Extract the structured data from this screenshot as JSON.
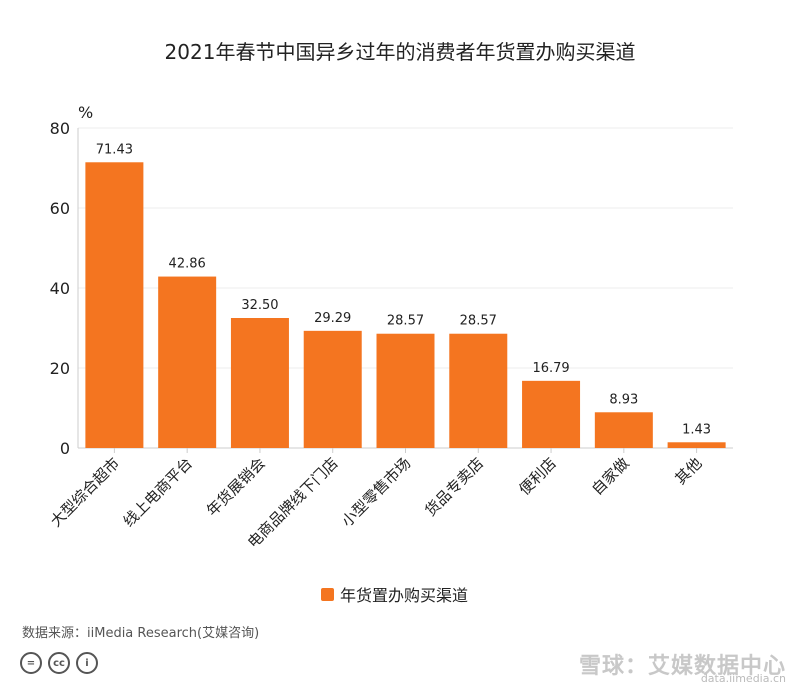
{
  "colors": {
    "bar": "#f47520",
    "axis": "#cccccc",
    "grid": "#eeeeee",
    "text": "#222222"
  },
  "chart_data": {
    "type": "bar",
    "title": "2021年春节中国异乡过年的消费者年货置办购买渠道",
    "unit": "%",
    "categories": [
      "大型综合超市",
      "线上电商平台",
      "年货展销会",
      "电商品牌线下门店",
      "小型零售市场",
      "货品专卖店",
      "便利店",
      "自家做",
      "其他"
    ],
    "series": [
      {
        "name": "年货置办购买渠道",
        "values": [
          71.43,
          42.86,
          32.5,
          29.29,
          28.57,
          28.57,
          16.79,
          8.93,
          1.43
        ]
      }
    ],
    "value_labels": [
      "71.43",
      "42.86",
      "32.50",
      "29.29",
      "28.57",
      "28.57",
      "16.79",
      "8.93",
      "1.43"
    ],
    "ylim": [
      0,
      80
    ],
    "yticks": [
      0,
      20,
      40,
      60,
      80
    ],
    "grid": true,
    "legend_position": "bottom"
  },
  "source": "数据来源：iiMedia Research(艾媒咨询)",
  "cc_icons": [
    "=",
    "cc",
    "i"
  ],
  "watermark": "雪球：艾媒数据中心",
  "watermark_sub": "data.iimedia.cn"
}
